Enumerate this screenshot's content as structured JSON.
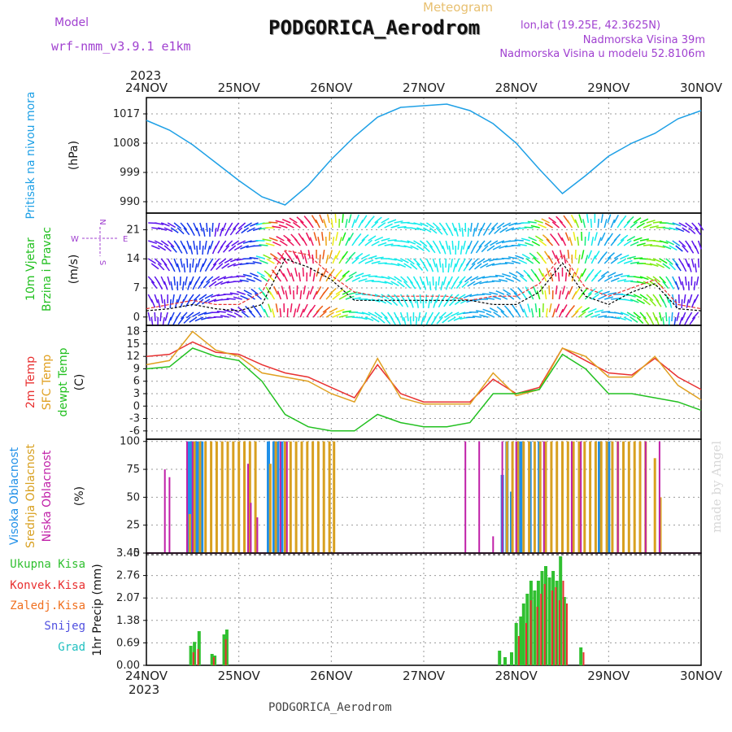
{
  "header": {
    "model_label": "Model",
    "model_name": "wrf-nmm_v3.9.1 e1km",
    "meteogram_label": "Meteogram",
    "station": "PODGORICA_Aerodrom",
    "lonlat": "lon,lat (19.25E, 42.3625N)",
    "elevation": "Nadmorska Visina 39m",
    "model_elevation": "Nadmorska Visina u modelu 52.8106m",
    "year": "2023",
    "footer_station": "PODGORICA_Aerodrom",
    "watermark": "made by Angel"
  },
  "colors": {
    "pressure": "#1ea0e6",
    "wind_label": "#22c020",
    "temp2m": "#e83030",
    "sfc": "#e0a020",
    "dewpt": "#22c020",
    "high_cloud": "#2090e8",
    "mid_cloud": "#d8a020",
    "low_cloud": "#c020a8",
    "total_precip": "#30c030",
    "conv_precip": "#e83030",
    "frozen": "#f07020",
    "snow": "#5050e0",
    "hail": "#20c0c0",
    "purple_text": "#a040d0"
  },
  "chart_data": [
    {
      "type": "line",
      "panel": "pressure",
      "ylabel": [
        "Pritisak na nivou mora",
        "(hPa)"
      ],
      "yticks": [
        990,
        999,
        1008,
        1017
      ],
      "ylim": [
        986.5,
        1022
      ],
      "x_days": [
        0,
        0.25,
        0.5,
        0.75,
        1.0,
        1.25,
        1.5,
        1.75,
        2.0,
        2.25,
        2.5,
        2.75,
        3.0,
        3.25,
        3.5,
        3.75,
        4.0,
        4.25,
        4.5,
        4.75,
        5.0,
        5.25,
        5.5,
        5.75,
        6.0
      ],
      "values": [
        1015,
        1012,
        1007.5,
        1002,
        996.5,
        991.5,
        989,
        995,
        1003,
        1010,
        1016,
        1019,
        1019.5,
        1020,
        1018,
        1014,
        1008,
        1000,
        992.5,
        998,
        1004,
        1008,
        1011,
        1015.5,
        1018
      ]
    },
    {
      "type": "scatter",
      "panel": "wind",
      "ylabel": [
        "10m Vjetar",
        "Brzina i Pravac",
        "(m/s)"
      ],
      "yticks": [
        0,
        7,
        14,
        21
      ],
      "ylim": [
        -2,
        25
      ],
      "compass": [
        "N",
        "W",
        "E",
        "S"
      ],
      "x_days": [
        0,
        0.25,
        0.5,
        0.75,
        1.0,
        1.25,
        1.5,
        1.75,
        2.0,
        2.25,
        2.5,
        2.75,
        3.0,
        3.25,
        3.5,
        3.75,
        4.0,
        4.25,
        4.5,
        4.75,
        5.0,
        5.25,
        5.5,
        5.75,
        6.0
      ],
      "speed": [
        1.5,
        2,
        3,
        2,
        1.5,
        3,
        14,
        12,
        9,
        4,
        4,
        4,
        4,
        4,
        4,
        3,
        3,
        6,
        13,
        5,
        3,
        6,
        8,
        2,
        1.5
      ],
      "gust": [
        2,
        3,
        4,
        3,
        3,
        6,
        16,
        15,
        10,
        6,
        5,
        5,
        5,
        5,
        4,
        5,
        5,
        8,
        15,
        7,
        5,
        7,
        9,
        3,
        2
      ]
    },
    {
      "type": "line",
      "panel": "temperature",
      "ylabel": [
        "2m Temp",
        "SFC Temp",
        "dewpt Temp",
        "(C)"
      ],
      "yticks": [
        -6,
        -3,
        0,
        3,
        6,
        9,
        12,
        15,
        18
      ],
      "ylim": [
        -8,
        19.5
      ],
      "x_days": [
        0,
        0.25,
        0.5,
        0.75,
        1.0,
        1.25,
        1.5,
        1.75,
        2.0,
        2.25,
        2.5,
        2.75,
        3.0,
        3.25,
        3.5,
        3.75,
        4.0,
        4.25,
        4.5,
        4.75,
        5.0,
        5.25,
        5.5,
        5.75,
        6.0
      ],
      "series": [
        {
          "name": "2m Temp",
          "values": [
            12,
            12.5,
            15.5,
            13,
            12.5,
            10,
            8,
            7,
            4.5,
            2,
            10,
            3,
            1,
            1,
            1,
            6.5,
            3,
            4.5,
            14,
            11,
            8,
            7.5,
            11.5,
            7,
            4
          ]
        },
        {
          "name": "SFC Temp",
          "values": [
            10,
            11,
            18,
            13.5,
            12,
            8,
            7,
            6,
            3,
            1,
            11.5,
            2,
            0.5,
            0.5,
            0.5,
            8,
            2.5,
            4,
            14,
            12,
            7,
            7,
            12,
            5,
            1.5
          ]
        },
        {
          "name": "dewpt Temp",
          "values": [
            9,
            9.5,
            14,
            12,
            11,
            6,
            -2,
            -5,
            -6,
            -6,
            -2,
            -4,
            -5,
            -5,
            -4,
            3,
            3,
            4,
            12.5,
            9,
            3,
            3,
            2,
            1,
            -1
          ]
        }
      ]
    },
    {
      "type": "bar",
      "panel": "cloud",
      "ylabel": [
        "Visoka Oblacnost",
        "Srednja Oblacnost",
        "Niska Oblacnost",
        "(%)"
      ],
      "yticks": [
        0,
        25,
        50,
        75,
        100
      ],
      "ylim": [
        0,
        102
      ],
      "series": [
        {
          "name": "Visoka Oblacnost",
          "x_days": [
            0.45,
            0.48,
            0.5,
            0.53,
            0.56,
            0.6,
            1.32,
            1.38,
            1.42,
            1.46,
            1.5,
            3.85,
            3.9,
            3.95,
            4.05,
            4.15,
            4.25,
            4.9,
            5.0
          ],
          "values": [
            100,
            100,
            100,
            100,
            100,
            100,
            100,
            100,
            100,
            100,
            100,
            70,
            100,
            55,
            100,
            100,
            100,
            100,
            100
          ]
        },
        {
          "name": "Srednja Oblacnost",
          "x_days": [
            0.47,
            0.52,
            0.58,
            0.64,
            0.7,
            0.76,
            0.82,
            0.88,
            0.94,
            1.0,
            1.06,
            1.12,
            1.18,
            1.34,
            1.4,
            1.5,
            1.56,
            1.62,
            1.68,
            1.74,
            1.8,
            1.86,
            1.92,
            1.98,
            2.03,
            3.9,
            3.96,
            4.02,
            4.08,
            4.14,
            4.2,
            4.26,
            4.32,
            4.38,
            4.44,
            4.5,
            4.56,
            4.62,
            4.68,
            4.74,
            4.8,
            4.86,
            4.92,
            4.98,
            5.04,
            5.1,
            5.16,
            5.22,
            5.28,
            5.34,
            5.4,
            5.5,
            5.56
          ],
          "values": [
            35,
            100,
            100,
            100,
            100,
            100,
            100,
            100,
            100,
            100,
            100,
            100,
            100,
            80,
            100,
            100,
            100,
            100,
            100,
            100,
            100,
            100,
            100,
            100,
            100,
            100,
            100,
            100,
            100,
            100,
            100,
            100,
            100,
            100,
            100,
            100,
            100,
            100,
            100,
            100,
            100,
            100,
            100,
            100,
            100,
            100,
            100,
            100,
            100,
            100,
            100,
            85,
            50
          ]
        },
        {
          "name": "Niska Oblacnost",
          "x_days": [
            0.2,
            0.25,
            0.44,
            0.5,
            1.1,
            1.13,
            1.2,
            1.45,
            1.52,
            3.45,
            3.6,
            3.75,
            3.85,
            4.0,
            4.3,
            4.6,
            4.7,
            5.1,
            5.4,
            5.55
          ],
          "values": [
            75,
            68,
            100,
            100,
            80,
            45,
            32,
            100,
            100,
            100,
            100,
            15,
            100,
            100,
            100,
            100,
            100,
            100,
            100,
            100
          ]
        }
      ]
    },
    {
      "type": "bar",
      "panel": "precipitation",
      "ylabel": [
        "1hr Precip (mm)"
      ],
      "legend": [
        "Ukupna Kisa",
        "Konvek.Kisa",
        "Zaledj.Kisa",
        "Snijeg",
        "Grad"
      ],
      "yticks": [
        0,
        0.69,
        1.38,
        2.07,
        2.76,
        3.45
      ],
      "ylim": [
        0,
        3.45
      ],
      "series": [
        {
          "name": "Ukupna Kisa",
          "x_days": [
            0.48,
            0.52,
            0.57,
            0.71,
            0.74,
            0.84,
            0.87,
            3.82,
            3.88,
            3.95,
            4.0,
            4.05,
            4.08,
            4.12,
            4.16,
            4.2,
            4.24,
            4.28,
            4.32,
            4.36,
            4.4,
            4.44,
            4.48,
            4.52,
            4.7
          ],
          "values": [
            0.6,
            0.72,
            1.05,
            0.35,
            0.3,
            0.95,
            1.1,
            0.45,
            0.25,
            0.4,
            1.3,
            1.5,
            1.9,
            2.2,
            2.6,
            2.3,
            2.6,
            2.9,
            3.05,
            2.7,
            2.9,
            2.6,
            3.35,
            2.1,
            0.55
          ]
        },
        {
          "name": "Konvek.Kisa",
          "x_days": [
            0.5,
            0.55,
            0.72,
            0.85,
            4.02,
            4.1,
            4.15,
            4.22,
            4.26,
            4.3,
            4.38,
            4.42,
            4.46,
            4.5,
            4.54,
            4.72
          ],
          "values": [
            0.4,
            0.5,
            0.25,
            0.8,
            0.9,
            1.3,
            2.0,
            1.8,
            2.2,
            2.5,
            2.3,
            2.4,
            2.0,
            2.6,
            1.9,
            0.4
          ]
        }
      ]
    }
  ]
}
